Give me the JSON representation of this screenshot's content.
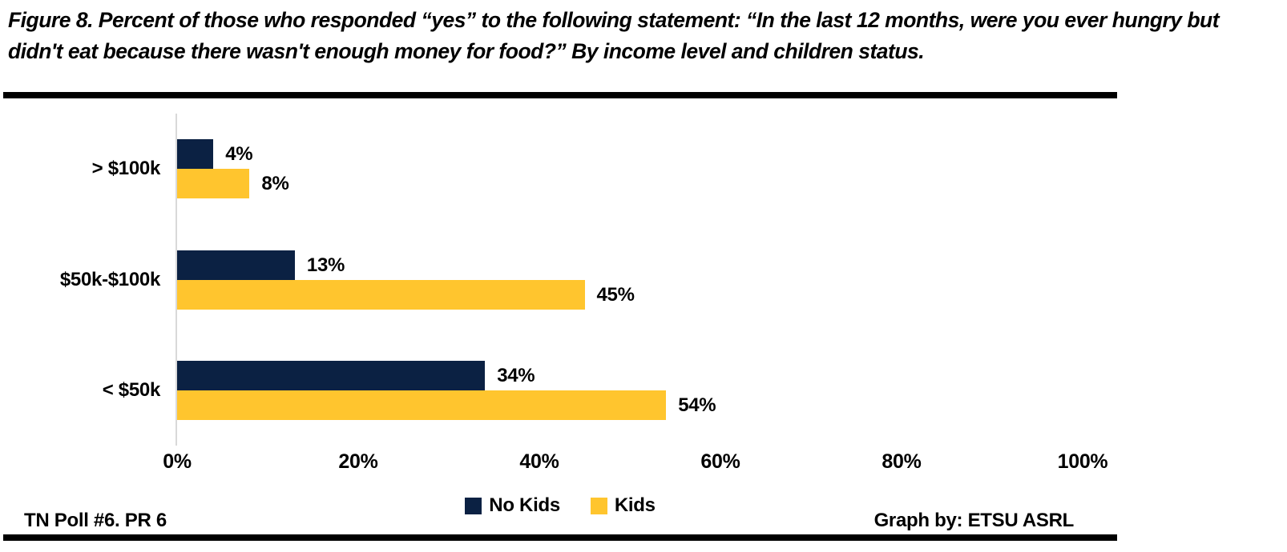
{
  "title": "Figure 8. Percent of those who responded “yes” to the following statement: “In the last 12 months, were you ever hungry but didn't eat because there wasn't enough money for food?” By income level and children status.",
  "chart_data": {
    "type": "bar",
    "orientation": "horizontal",
    "title": "Figure 8. Percent of those who responded “yes” to the following statement: “In the last 12 months, were you ever hungry but didn't eat because there wasn't enough money for food?” By income level and children status.",
    "categories": [
      "> $100k",
      "$50k-$100k",
      "< $50k"
    ],
    "series": [
      {
        "name": "No Kids",
        "color": "#0b2143",
        "values": [
          4,
          13,
          34
        ],
        "value_labels": [
          "4%",
          "13%",
          "34%"
        ]
      },
      {
        "name": "Kids",
        "color": "#ffc52e",
        "values": [
          8,
          45,
          54
        ],
        "value_labels": [
          "8%",
          "45%",
          "54%"
        ]
      }
    ],
    "x_ticks": [
      "0%",
      "20%",
      "40%",
      "60%",
      "80%",
      "100%"
    ],
    "xlim": [
      0,
      100
    ],
    "xlabel": "",
    "ylabel": "",
    "grid": false,
    "legend_position": "bottom-center",
    "axis_color": "#d9d9d9"
  },
  "footer": {
    "left": "TN Poll #6. PR 6",
    "right": "Graph by: ETSU ASRL"
  }
}
